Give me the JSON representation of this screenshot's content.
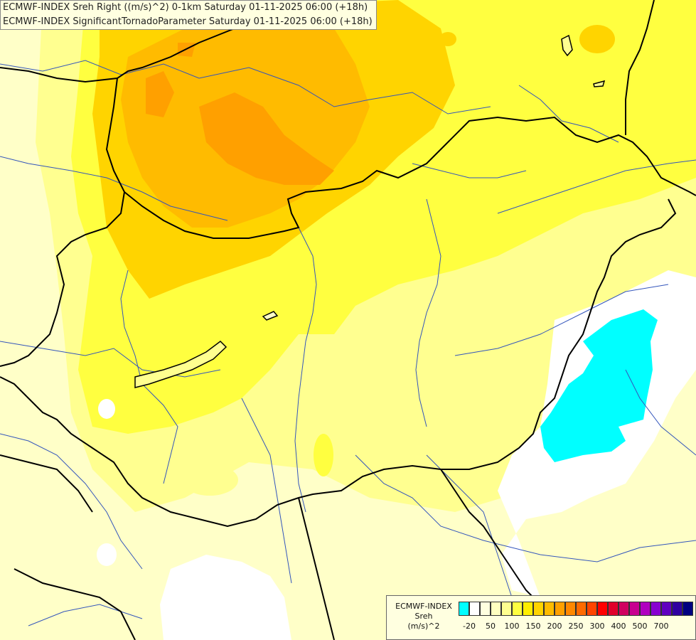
{
  "header": {
    "line1": "ECMWF-INDEX Sreh Right ((m/s)^2) 0-1km Saturday 01-11-2025 06:00 (+18h)",
    "line2": "ECMWF-INDEX SignificantTornadoParameter Saturday 01-11-2025 06:00 (+18h)"
  },
  "legend": {
    "title_line1": "ECMWF-INDEX",
    "title_line2": "Sreh",
    "title_line3": "(m/s)^2",
    "colors": [
      "#00ffff",
      "#ffffff",
      "#ffffe0",
      "#ffffc0",
      "#ffff90",
      "#ffff40",
      "#ffee00",
      "#ffd400",
      "#ffbb00",
      "#ffa000",
      "#ff8800",
      "#ff6a00",
      "#ff4400",
      "#ff0000",
      "#e0002a",
      "#d00060",
      "#c80090",
      "#b000c0",
      "#8800d0",
      "#6000c0",
      "#3000a0",
      "#000080"
    ],
    "labels": [
      "-20",
      "50",
      "100",
      "150",
      "200",
      "250",
      "300",
      "400",
      "500",
      "700"
    ]
  },
  "map": {
    "fill_colors": {
      "background": "#ffffc8",
      "light_yellow": "#ffff90",
      "yellow": "#ffff40",
      "gold": "#ffd400",
      "orange": "#ffbb00",
      "deep_orange": "#ffa000",
      "white": "#ffffff",
      "cyan": "#00ffff"
    }
  }
}
